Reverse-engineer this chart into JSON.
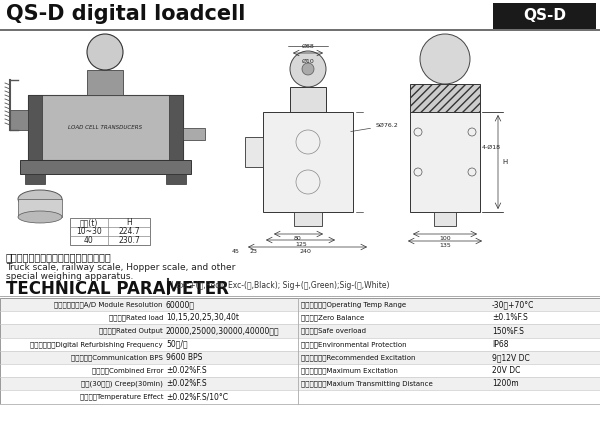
{
  "title": "QS-D digital loadcell",
  "title_tag": "QS-D",
  "bg_color": "#ffffff",
  "title_color": "#111111",
  "tag_bg": "#1a1a1a",
  "tag_text": "#ffffff",
  "tech_header": "TECHNICAL PARAMETER",
  "tech_subheader": "| Exc+(红,Red); Exc-(黑,Black); Sig+(绿,Green);Sig-(白,White)",
  "description_cn": "汽车衡、轨道衡、配料秤及各种专用衡器",
  "description_en1": "Truck scale, railway scale, Hopper scale, and other",
  "description_en2": "special weighing apparatus.",
  "table_rows_left": [
    [
      "数字模块分辨数A/D Module Resolution",
      "60000码"
    ],
    [
      "额定载荷Rated load",
      "10,15,20,25,30,40t"
    ],
    [
      "额定输出Rated Output",
      "20000,25000,30000,40000内码"
    ],
    [
      "数据刷新速率Digital Refurbishing Frequency",
      "50次/秒"
    ],
    [
      "通讯波特率Communication BPS",
      "9600 BPS"
    ],
    [
      "综合精度Combined Error",
      "±0.02%F.S"
    ],
    [
      "蜀变(30分钟) Creep(30min)",
      "±0.02%F.S"
    ],
    [
      "温度系数Temperature Effect",
      "±0.02%F.S/10°C"
    ]
  ],
  "table_rows_right": [
    [
      "使用温度范围Operating Temp Range",
      "-30～+70°C"
    ],
    [
      "零点输出Zero Balance",
      "±0.1%F.S"
    ],
    [
      "安全过载Safe overload",
      "150%F.S"
    ],
    [
      "防护等级Environmental Protection",
      "IP68"
    ],
    [
      "推荐输入电压Recommended Excitation",
      "9～12V DC"
    ],
    [
      "最大输入电压Maximum Excitation",
      "20V DC"
    ],
    [
      "最大传输距离Maxium Transmitting Distance",
      "1200m"
    ],
    [
      "",
      ""
    ]
  ],
  "dim_table": [
    [
      "重量(t)",
      "H"
    ],
    [
      "10~30",
      "224.7"
    ],
    [
      "40",
      "230.7"
    ]
  ],
  "table_line_color": "#cccccc",
  "header_line_color": "#888888",
  "title_fontsize": 15,
  "tag_fontsize": 11,
  "tech_header_fontsize": 12,
  "tech_sub_fontsize": 5.5,
  "table_label_fontsize": 5.0,
  "table_value_fontsize": 5.5,
  "desc_cn_fontsize": 7.0,
  "desc_en_fontsize": 6.5
}
